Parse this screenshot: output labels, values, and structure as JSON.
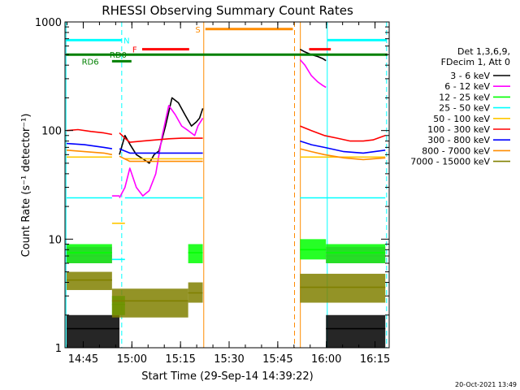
{
  "chart_data": {
    "type": "line",
    "title": "RHESSI Observing Summary Count Rates",
    "xlabel": "Start Time (29-Sep-14 14:39:22)",
    "ylabel": "Count Rate (s⁻¹ detector⁻¹)",
    "x_unit": "minutes after 14:39:22",
    "xlim": [
      0,
      100
    ],
    "ylim": [
      1,
      1000
    ],
    "yscale": "log",
    "x_ticks": [
      {
        "x": 5.63,
        "label": "14:45"
      },
      {
        "x": 20.63,
        "label": "15:00"
      },
      {
        "x": 35.63,
        "label": "15:15"
      },
      {
        "x": 50.63,
        "label": "15:30"
      },
      {
        "x": 65.63,
        "label": "15:45"
      },
      {
        "x": 80.63,
        "label": "16:00"
      },
      {
        "x": 95.63,
        "label": "16:15"
      }
    ],
    "y_ticks": [
      {
        "y": 1,
        "label": "1"
      },
      {
        "y": 10,
        "label": "10"
      },
      {
        "y": 100,
        "label": "100"
      },
      {
        "y": 1000,
        "label": "1000"
      }
    ],
    "footer": "20-Oct-2021 13:49",
    "legend": {
      "position": "right",
      "header": [
        "Det 1,3,6,9,",
        "FDecim 1, Att 0"
      ]
    },
    "series": [
      {
        "name": "3 - 6 keV",
        "color": "#000000",
        "segments": [
          {
            "x": [
              0.5,
              16.8
            ],
            "y": [
              1.5,
              1.5
            ],
            "band": [
              1.0,
              2.0
            ]
          },
          {
            "x": [
              16.8,
              18.5,
              20,
              22,
              24,
              26,
              27.5,
              29,
              31,
              33,
              35,
              37,
              39,
              40.5,
              41.5,
              42.5
            ],
            "y": [
              60,
              90,
              75,
              60,
              55,
              50,
              60,
              65,
              110,
              200,
              180,
              140,
              110,
              120,
              130,
              160
            ]
          },
          {
            "x": [
              72.5,
              74,
              76,
              78,
              79.5,
              80.5
            ],
            "y": [
              560,
              530,
              500,
              480,
              460,
              440
            ]
          },
          {
            "x": [
              80.5,
              98.8
            ],
            "y": [
              1.5,
              1.5
            ],
            "band": [
              1.0,
              2.0
            ]
          }
        ]
      },
      {
        "name": "6 - 12 keV",
        "color": "#ff00ff",
        "segments": [
          {
            "x": [
              0.5,
              14.5
            ],
            "y": [
              7.0,
              7.0
            ],
            "band": [
              6.0,
              8.5
            ]
          },
          {
            "x": [
              14.5,
              16.8
            ],
            "y": [
              25,
              25
            ]
          },
          {
            "x": [
              16.8,
              18.5,
              20,
              22,
              24,
              26,
              28,
              30,
              32,
              34,
              36,
              38,
              40,
              41,
              42.5
            ],
            "y": [
              24,
              30,
              45,
              30,
              25,
              28,
              40,
              90,
              170,
              140,
              110,
              100,
              90,
              110,
              130
            ]
          },
          {
            "x": [
              72.5,
              74,
              76,
              78,
              79.5,
              80.5
            ],
            "y": [
              450,
              400,
              320,
              280,
              260,
              250
            ]
          },
          {
            "x": [
              80.5,
              98.8
            ],
            "y": [
              7.0,
              7.0
            ],
            "band": [
              6.0,
              8.5
            ]
          }
        ]
      },
      {
        "name": "12 - 25 keV",
        "color": "#00ff00",
        "segments": [
          {
            "x": [
              0.5,
              14.5
            ],
            "y": [
              7.5,
              7.5
            ],
            "band": [
              6.0,
              9.0
            ]
          },
          {
            "x": [
              14.5,
              18.5
            ],
            "y": [
              2.5,
              2.5
            ],
            "band": [
              2.0,
              3.0
            ]
          },
          {
            "x": [
              38.0,
              42.5
            ],
            "y": [
              7.5,
              7.5
            ],
            "band": [
              6.0,
              9.0
            ]
          },
          {
            "x": [
              72.5,
              80.5
            ],
            "y": [
              8.0,
              8.0
            ],
            "band": [
              6.5,
              10.0
            ]
          },
          {
            "x": [
              80.5,
              98.8
            ],
            "y": [
              7.5,
              7.5
            ],
            "band": [
              6.0,
              9.0
            ]
          }
        ]
      },
      {
        "name": "25 - 50 keV",
        "color": "#00ffff",
        "segments": [
          {
            "x": [
              0.5,
              14.5
            ],
            "y": [
              24,
              24
            ]
          },
          {
            "x": [
              14.5,
              18.5
            ],
            "y": [
              6.5,
              6.5
            ]
          },
          {
            "x": [
              18.5,
              42.5
            ],
            "y": [
              24,
              24
            ]
          },
          {
            "x": [
              72.5,
              98.8
            ],
            "y": [
              24,
              24
            ]
          }
        ]
      },
      {
        "name": "50 - 100 keV",
        "color": "#ffc800",
        "segments": [
          {
            "x": [
              0.5,
              14.5
            ],
            "y": [
              57,
              57
            ]
          },
          {
            "x": [
              14.5,
              18.5
            ],
            "y": [
              14,
              14
            ]
          },
          {
            "x": [
              18.5,
              42.5
            ],
            "y": [
              55,
              55
            ]
          },
          {
            "x": [
              72.5,
              98.8
            ],
            "y": [
              57,
              57
            ]
          }
        ]
      },
      {
        "name": "100 - 300 keV",
        "color": "#ff0000",
        "segments": [
          {
            "x": [
              0.5,
              4,
              8,
              12,
              14.5
            ],
            "y": [
              100,
              102,
              98,
              95,
              92
            ]
          },
          {
            "x": [
              16.8,
              18.5,
              20,
              24,
              28,
              32,
              36,
              40,
              42.5
            ],
            "y": [
              95,
              85,
              78,
              80,
              82,
              84,
              85,
              85,
              85
            ]
          },
          {
            "x": [
              72.5,
              76,
              80,
              84,
              88,
              92,
              95,
              98.8
            ],
            "y": [
              110,
              100,
              90,
              85,
              80,
              80,
              82,
              90
            ]
          }
        ]
      },
      {
        "name": "300 - 800 keV",
        "color": "#0000ff",
        "segments": [
          {
            "x": [
              0.5,
              6,
              12,
              14.5
            ],
            "y": [
              76,
              74,
              70,
              68
            ]
          },
          {
            "x": [
              16.8,
              20,
              26,
              32,
              38,
              42.5
            ],
            "y": [
              68,
              62,
              62,
              62,
              62,
              62
            ]
          },
          {
            "x": [
              72.5,
              76,
              80,
              86,
              92,
              98.8
            ],
            "y": [
              80,
              74,
              70,
              64,
              62,
              66
            ]
          }
        ]
      },
      {
        "name": "800 - 7000 keV",
        "color": "#ff8c00",
        "segments": [
          {
            "x": [
              0.5,
              6,
              12,
              14.5
            ],
            "y": [
              66,
              64,
              62,
              60
            ]
          },
          {
            "x": [
              16.8,
              20,
              26,
              32,
              38,
              42.5
            ],
            "y": [
              58,
              52,
              52,
              52,
              52,
              52
            ]
          },
          {
            "x": [
              72.5,
              76,
              80,
              86,
              92,
              98.8
            ],
            "y": [
              68,
              64,
              60,
              56,
              54,
              56
            ]
          }
        ]
      },
      {
        "name": "7000 - 15000 keV",
        "color": "#808000",
        "segments": [
          {
            "x": [
              0.5,
              14.5
            ],
            "y": [
              4.2,
              4.2
            ],
            "band": [
              3.4,
              5.0
            ]
          },
          {
            "x": [
              14.5,
              38.0
            ],
            "y": [
              2.7,
              2.7
            ],
            "band": [
              1.9,
              3.5
            ]
          },
          {
            "x": [
              38.0,
              42.5
            ],
            "y": [
              3.2,
              3.2
            ],
            "band": [
              2.6,
              4.0
            ]
          },
          {
            "x": [
              72.5,
              98.8
            ],
            "y": [
              3.6,
              3.6
            ],
            "band": [
              2.6,
              4.8
            ]
          }
        ]
      }
    ],
    "annotations": {
      "vertical_lines": [
        {
          "x": 0.3,
          "color": "#00ffff",
          "style": "solid"
        },
        {
          "x": 17.5,
          "color": "#00ffff",
          "style": "dashed"
        },
        {
          "x": 42.8,
          "color": "#ff8c00",
          "style": "solid"
        },
        {
          "x": 70.8,
          "color": "#ff8c00",
          "style": "dashed"
        },
        {
          "x": 72.6,
          "color": "#ff8c00",
          "style": "solid"
        },
        {
          "x": 80.9,
          "color": "#00ffff",
          "style": "solid"
        },
        {
          "x": 99.2,
          "color": "#00ffff",
          "style": "dashed"
        }
      ],
      "horizontal_lines": [
        {
          "label": "N",
          "color": "#00ffff",
          "y": 680,
          "x": [
            0.3,
            17.5
          ],
          "label_x": 19.0
        },
        {
          "label": "",
          "color": "#00ffff",
          "y": 680,
          "x": [
            80.9,
            99.2
          ],
          "label_x": null
        },
        {
          "label": "S",
          "color": "#ff8c00",
          "y": 860,
          "x": [
            43.3,
            70.3
          ],
          "label_x": 41.0
        },
        {
          "label": "F",
          "color": "#ff0000",
          "y": 560,
          "x": [
            23.8,
            38.3
          ],
          "label_x": 21.5
        },
        {
          "label": "",
          "color": "#ff0000",
          "y": 560,
          "x": [
            75.3,
            82.0
          ],
          "label_x": null
        },
        {
          "label": "RD0",
          "color": "#008000",
          "y": 500,
          "x": [
            0.3,
            99.5
          ],
          "label_x": 16.4
        },
        {
          "label": "RD6",
          "color": "#008000",
          "y": 435,
          "x": [
            14.5,
            20.5
          ],
          "label_x": 7.8
        }
      ]
    }
  }
}
